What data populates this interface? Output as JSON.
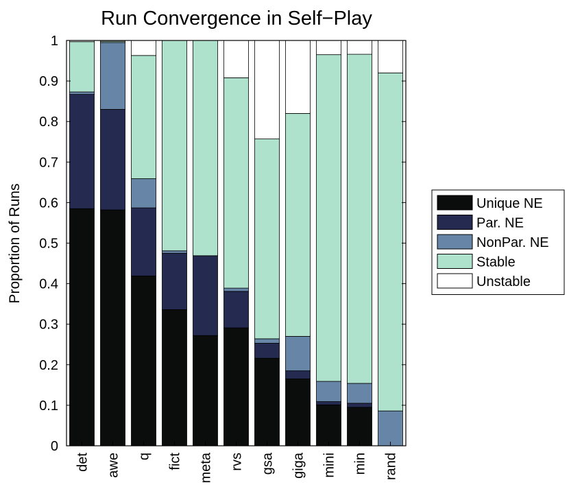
{
  "chart_data": {
    "type": "bar",
    "stacked": true,
    "title": "Run Convergence in Self−Play",
    "xlabel": "",
    "ylabel": "Proportion of Runs",
    "ylim": [
      0,
      1
    ],
    "yticks": [
      "0",
      "0.1",
      "0.2",
      "0.3",
      "0.4",
      "0.5",
      "0.6",
      "0.7",
      "0.8",
      "0.9",
      "1"
    ],
    "grid": false,
    "legend_position": "right",
    "categories": [
      "det",
      "awe",
      "q",
      "fict",
      "meta",
      "rvs",
      "gsa",
      "giga",
      "mini",
      "min",
      "rand"
    ],
    "series": [
      {
        "name": "Unique NE",
        "color": "#0b0d0c",
        "values": [
          0.585,
          0.582,
          0.419,
          0.336,
          0.272,
          0.291,
          0.216,
          0.165,
          0.101,
          0.095,
          0.0
        ]
      },
      {
        "name": "Par. NE",
        "color": "#242a50",
        "values": [
          0.282,
          0.248,
          0.168,
          0.139,
          0.197,
          0.09,
          0.037,
          0.02,
          0.008,
          0.01,
          0.0
        ]
      },
      {
        "name": "NonPar. NE",
        "color": "#6786a7",
        "values": [
          0.006,
          0.165,
          0.072,
          0.006,
          0.0,
          0.008,
          0.011,
          0.085,
          0.05,
          0.049,
          0.086
        ]
      },
      {
        "name": "Stable",
        "color": "#aee2cd",
        "values": [
          0.124,
          0.003,
          0.304,
          0.519,
          0.531,
          0.519,
          0.493,
          0.55,
          0.806,
          0.812,
          0.834
        ]
      },
      {
        "name": "Unstable",
        "color": "#ffffff",
        "values": [
          0.003,
          0.002,
          0.037,
          0.0,
          0.0,
          0.092,
          0.243,
          0.18,
          0.035,
          0.034,
          0.08
        ]
      }
    ]
  }
}
